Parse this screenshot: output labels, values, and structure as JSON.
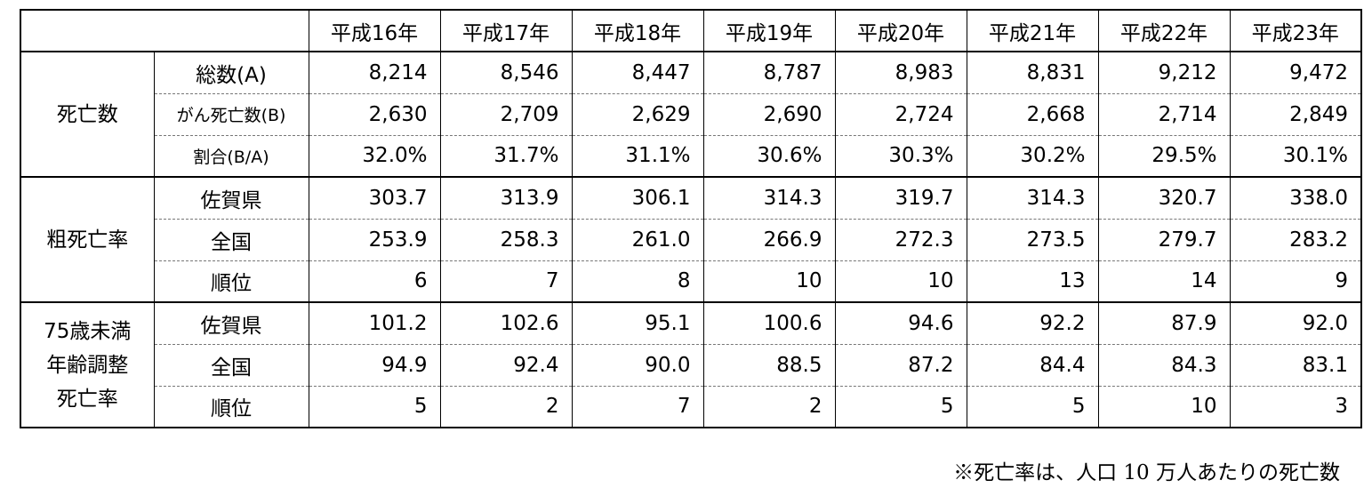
{
  "table": {
    "years": [
      "平成16年",
      "平成17年",
      "平成18年",
      "平成19年",
      "平成20年",
      "平成21年",
      "平成22年",
      "平成23年"
    ],
    "groups": [
      {
        "label_lines": [
          "死亡数"
        ],
        "rows": [
          {
            "label": "総数(A)",
            "cells": [
              "8,214",
              "8,546",
              "8,447",
              "8,787",
              "8,983",
              "8,831",
              "9,212",
              "9,472"
            ]
          },
          {
            "label": "がん死亡数(B)",
            "cells": [
              "2,630",
              "2,709",
              "2,629",
              "2,690",
              "2,724",
              "2,668",
              "2,714",
              "2,849"
            ]
          },
          {
            "label": "割合(B/A)",
            "cells": [
              "32.0%",
              "31.7%",
              "31.1%",
              "30.6%",
              "30.3%",
              "30.2%",
              "29.5%",
              "30.1%"
            ]
          }
        ]
      },
      {
        "label_lines": [
          "粗死亡率"
        ],
        "rows": [
          {
            "label": "佐賀県",
            "cells": [
              "303.7",
              "313.9",
              "306.1",
              "314.3",
              "319.7",
              "314.3",
              "320.7",
              "338.0"
            ]
          },
          {
            "label": "全国",
            "cells": [
              "253.9",
              "258.3",
              "261.0",
              "266.9",
              "272.3",
              "273.5",
              "279.7",
              "283.2"
            ]
          },
          {
            "label": "順位",
            "cells": [
              "6",
              "7",
              "8",
              "10",
              "10",
              "13",
              "14",
              "9"
            ]
          }
        ]
      },
      {
        "label_lines": [
          "75歳未満",
          "年齢調整",
          "死亡率"
        ],
        "rows": [
          {
            "label": "佐賀県",
            "cells": [
              "101.2",
              "102.6",
              "95.1",
              "100.6",
              "94.6",
              "92.2",
              "87.9",
              "92.0"
            ]
          },
          {
            "label": "全国",
            "cells": [
              "94.9",
              "92.4",
              "90.0",
              "88.5",
              "87.2",
              "84.4",
              "84.3",
              "83.1"
            ]
          },
          {
            "label": "順位",
            "cells": [
              "5",
              "2",
              "7",
              "2",
              "5",
              "5",
              "10",
              "3"
            ]
          }
        ]
      }
    ]
  },
  "note": "※死亡率は、人口 10 万人あたりの死亡数"
}
